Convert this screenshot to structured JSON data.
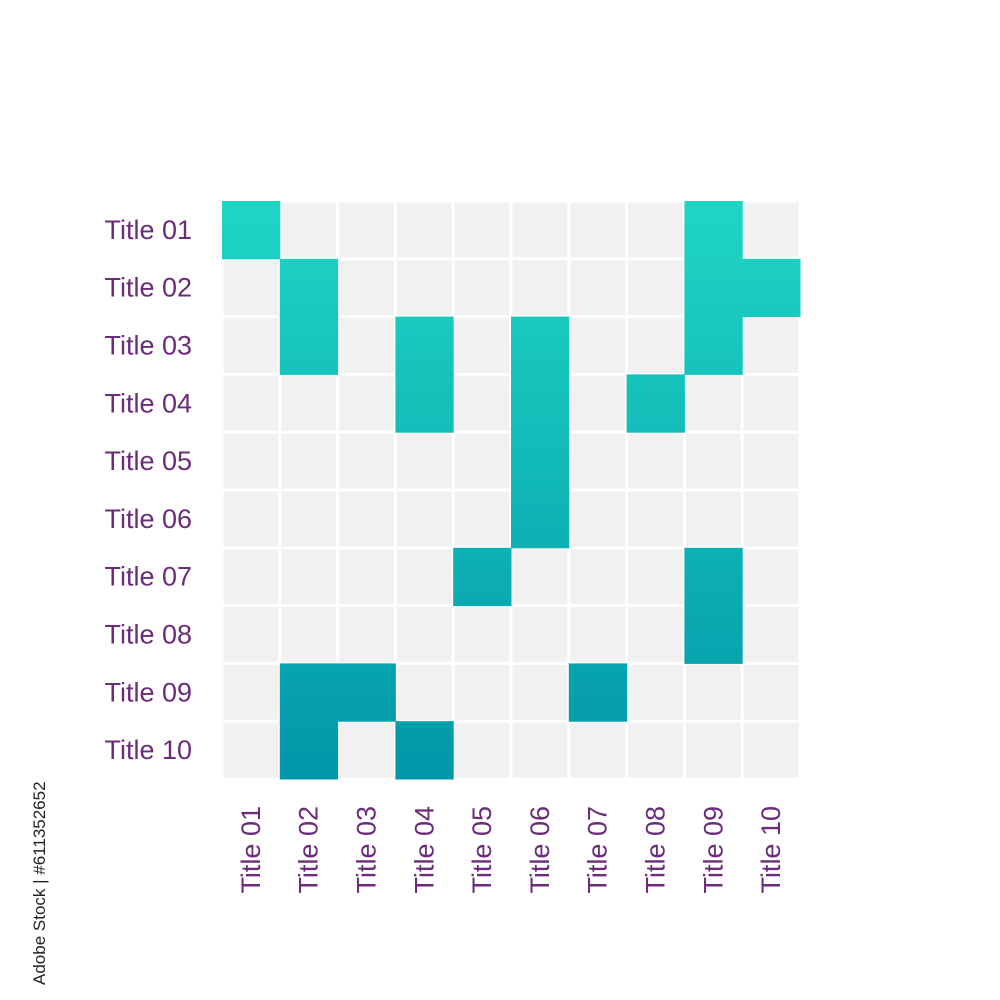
{
  "colors": {
    "empty_cell": "#f1f1f1",
    "fill_top": "#1fd6c4",
    "fill_bottom": "#0197a9",
    "label_color": "#6b2c7a",
    "gridline": "#ffffff"
  },
  "watermark": "Adobe Stock | #611352652",
  "chart_data": {
    "type": "heatmap",
    "title": "",
    "xlabel": "",
    "ylabel": "",
    "row_labels": [
      "Title 01",
      "Title 02",
      "Title 03",
      "Title 04",
      "Title 05",
      "Title 06",
      "Title 07",
      "Title 08",
      "Title 09",
      "Title 10"
    ],
    "col_labels": [
      "Title 01",
      "Title 02",
      "Title 03",
      "Title 04",
      "Title 05",
      "Title 06",
      "Title 07",
      "Title 08",
      "Title 09",
      "Title 10"
    ],
    "matrix": [
      [
        1,
        0,
        0,
        0,
        0,
        0,
        0,
        0,
        1,
        0
      ],
      [
        0,
        1,
        0,
        0,
        0,
        0,
        0,
        0,
        1,
        1
      ],
      [
        0,
        1,
        0,
        1,
        0,
        1,
        0,
        0,
        1,
        0
      ],
      [
        0,
        0,
        0,
        1,
        0,
        1,
        0,
        1,
        0,
        0
      ],
      [
        0,
        0,
        0,
        0,
        0,
        1,
        0,
        0,
        0,
        0
      ],
      [
        0,
        0,
        0,
        0,
        0,
        1,
        0,
        0,
        0,
        0
      ],
      [
        0,
        0,
        0,
        0,
        1,
        0,
        0,
        0,
        1,
        0
      ],
      [
        0,
        0,
        0,
        0,
        0,
        0,
        0,
        0,
        1,
        0
      ],
      [
        0,
        1,
        1,
        0,
        0,
        0,
        1,
        0,
        0,
        0
      ],
      [
        0,
        1,
        0,
        1,
        0,
        0,
        0,
        0,
        0,
        0
      ]
    ],
    "color_scale": "vertical gradient from turquoise (top) to dark teal (bottom)",
    "legend": "none",
    "grid": true
  }
}
